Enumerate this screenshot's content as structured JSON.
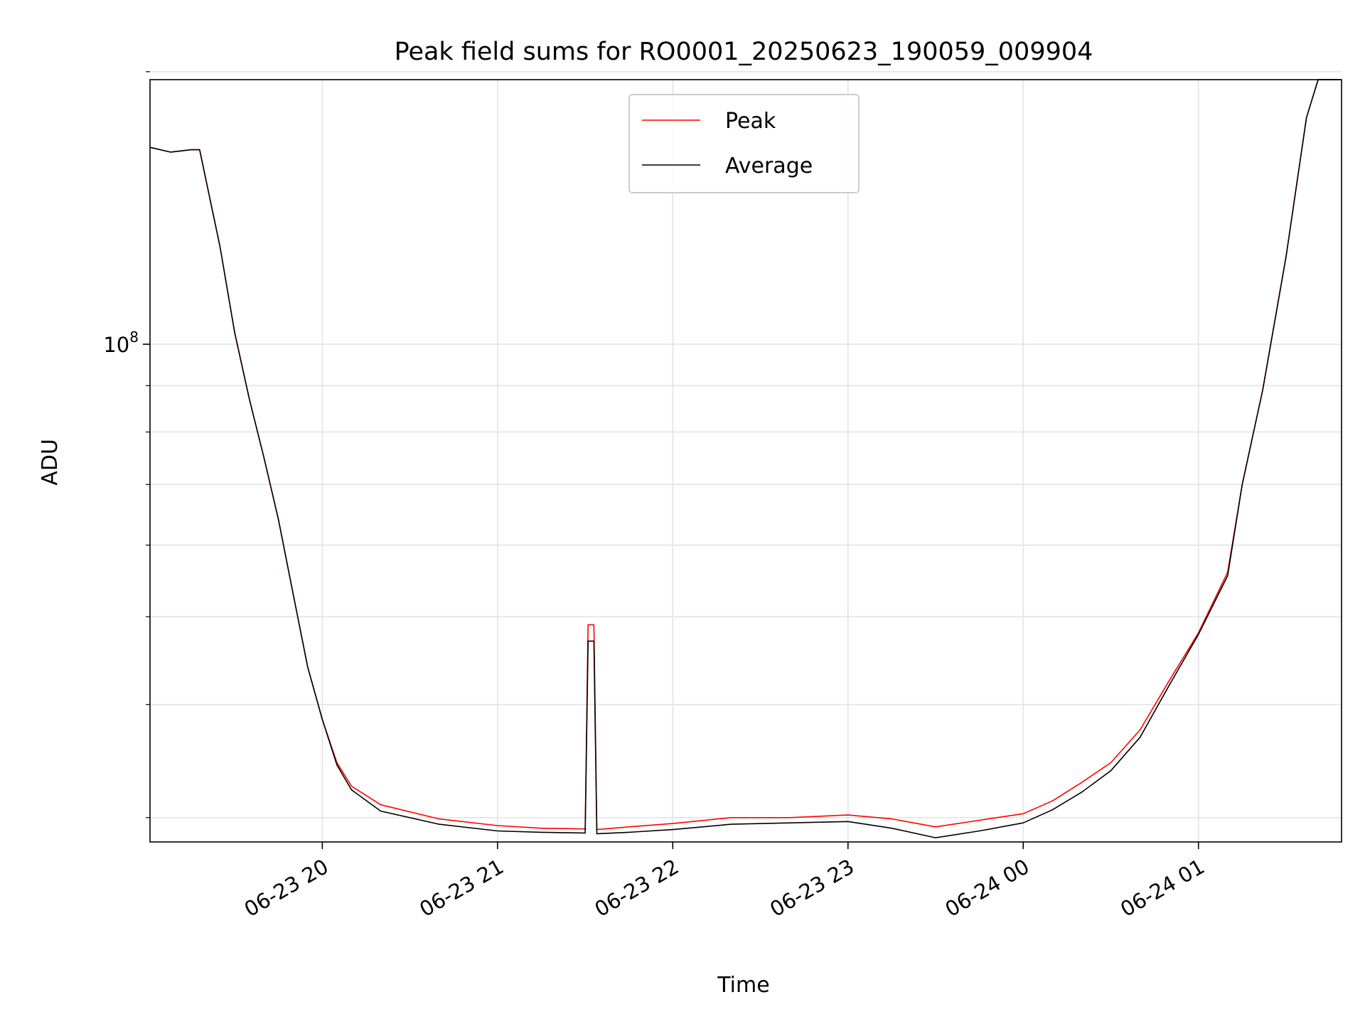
{
  "chart_data": {
    "type": "line",
    "title": "Peak field sums for RO0001_20250623_190059_009904",
    "xlabel": "Time",
    "ylabel": "ADU",
    "y_scale": "log",
    "grid": true,
    "legend_position": "top-center",
    "xlim": [
      "2025-06-23 19:01",
      "2025-06-24 01:49"
    ],
    "ylim": [
      28200000,
      196000000
    ],
    "x_ticks": [
      {
        "value": "2025-06-23 20:00",
        "label": "06-23 20"
      },
      {
        "value": "2025-06-23 21:00",
        "label": "06-23 21"
      },
      {
        "value": "2025-06-23 22:00",
        "label": "06-23 22"
      },
      {
        "value": "2025-06-23 23:00",
        "label": "06-23 23"
      },
      {
        "value": "2025-06-24 00:00",
        "label": "06-24 00"
      },
      {
        "value": "2025-06-24 01:00",
        "label": "06-24 01"
      }
    ],
    "y_major_ticks": [
      {
        "value": 100000000,
        "base": "10",
        "exponent": "8"
      }
    ],
    "y_minor_ticks": [
      30000000,
      40000000,
      50000000,
      60000000,
      70000000,
      80000000,
      90000000,
      200000000
    ],
    "series": [
      {
        "name": "Peak",
        "color": "#ff0000",
        "points": [
          [
            "2025-06-23 19:01",
            165000000
          ],
          [
            "2025-06-23 19:08",
            163000000
          ],
          [
            "2025-06-23 19:15",
            164000000
          ],
          [
            "2025-06-23 19:18",
            164000000
          ],
          [
            "2025-06-23 19:25",
            128000000
          ],
          [
            "2025-06-23 19:30",
            103000000
          ],
          [
            "2025-06-23 19:35",
            87000000
          ],
          [
            "2025-06-23 19:40",
            75000000
          ],
          [
            "2025-06-23 19:45",
            64000000
          ],
          [
            "2025-06-23 19:50",
            53000000
          ],
          [
            "2025-06-23 19:55",
            44000000
          ],
          [
            "2025-06-23 20:00",
            38500000
          ],
          [
            "2025-06-23 20:05",
            34500000
          ],
          [
            "2025-06-23 20:10",
            32500000
          ],
          [
            "2025-06-23 20:20",
            31000000
          ],
          [
            "2025-06-23 20:40",
            29900000
          ],
          [
            "2025-06-23 21:00",
            29400000
          ],
          [
            "2025-06-23 21:15",
            29200000
          ],
          [
            "2025-06-23 21:30",
            29150000
          ],
          [
            "2025-06-23 21:31",
            49000000
          ],
          [
            "2025-06-23 21:33",
            49000000
          ],
          [
            "2025-06-23 21:34",
            29100000
          ],
          [
            "2025-06-23 21:45",
            29300000
          ],
          [
            "2025-06-23 22:00",
            29550000
          ],
          [
            "2025-06-23 22:20",
            30000000
          ],
          [
            "2025-06-23 22:40",
            30000000
          ],
          [
            "2025-06-23 23:00",
            30200000
          ],
          [
            "2025-06-23 23:15",
            29900000
          ],
          [
            "2025-06-23 23:30",
            29300000
          ],
          [
            "2025-06-23 23:45",
            29800000
          ],
          [
            "2025-06-24 00:00",
            30300000
          ],
          [
            "2025-06-24 00:10",
            31300000
          ],
          [
            "2025-06-24 00:20",
            32800000
          ],
          [
            "2025-06-24 00:30",
            34500000
          ],
          [
            "2025-06-24 00:40",
            37500000
          ],
          [
            "2025-06-24 00:50",
            42500000
          ],
          [
            "2025-06-24 01:00",
            48000000
          ],
          [
            "2025-06-24 01:10",
            56000000
          ],
          [
            "2025-06-24 01:15",
            70000000
          ],
          [
            "2025-06-24 01:22",
            89000000
          ],
          [
            "2025-06-24 01:30",
            125000000
          ],
          [
            "2025-06-24 01:37",
            178000000
          ],
          [
            "2025-06-24 01:41",
            196000000
          ],
          [
            "2025-06-24 01:49",
            196000000
          ]
        ]
      },
      {
        "name": "Average",
        "color": "#000000",
        "points": [
          [
            "2025-06-23 19:01",
            165000000
          ],
          [
            "2025-06-23 19:08",
            163000000
          ],
          [
            "2025-06-23 19:15",
            164000000
          ],
          [
            "2025-06-23 19:18",
            164000000
          ],
          [
            "2025-06-23 19:25",
            128000000
          ],
          [
            "2025-06-23 19:30",
            103000000
          ],
          [
            "2025-06-23 19:35",
            87000000
          ],
          [
            "2025-06-23 19:40",
            75000000
          ],
          [
            "2025-06-23 19:45",
            64000000
          ],
          [
            "2025-06-23 19:50",
            53000000
          ],
          [
            "2025-06-23 19:55",
            44000000
          ],
          [
            "2025-06-23 20:00",
            38500000
          ],
          [
            "2025-06-23 20:05",
            34300000
          ],
          [
            "2025-06-23 20:10",
            32200000
          ],
          [
            "2025-06-23 20:20",
            30500000
          ],
          [
            "2025-06-23 20:40",
            29500000
          ],
          [
            "2025-06-23 21:00",
            29000000
          ],
          [
            "2025-06-23 21:15",
            28900000
          ],
          [
            "2025-06-23 21:30",
            28850000
          ],
          [
            "2025-06-23 21:31",
            47000000
          ],
          [
            "2025-06-23 21:33",
            47000000
          ],
          [
            "2025-06-23 21:34",
            28800000
          ],
          [
            "2025-06-23 21:45",
            28900000
          ],
          [
            "2025-06-23 22:00",
            29100000
          ],
          [
            "2025-06-23 22:20",
            29500000
          ],
          [
            "2025-06-23 22:40",
            29600000
          ],
          [
            "2025-06-23 23:00",
            29700000
          ],
          [
            "2025-06-23 23:15",
            29200000
          ],
          [
            "2025-06-23 23:30",
            28500000
          ],
          [
            "2025-06-23 23:45",
            29000000
          ],
          [
            "2025-06-24 00:00",
            29600000
          ],
          [
            "2025-06-24 00:10",
            30600000
          ],
          [
            "2025-06-24 00:20",
            32000000
          ],
          [
            "2025-06-24 00:30",
            33800000
          ],
          [
            "2025-06-24 00:40",
            36800000
          ],
          [
            "2025-06-24 00:50",
            42000000
          ],
          [
            "2025-06-24 01:00",
            47800000
          ],
          [
            "2025-06-24 01:10",
            55500000
          ],
          [
            "2025-06-24 01:15",
            70000000
          ],
          [
            "2025-06-24 01:22",
            89000000
          ],
          [
            "2025-06-24 01:30",
            125000000
          ],
          [
            "2025-06-24 01:37",
            178000000
          ],
          [
            "2025-06-24 01:41",
            196000000
          ],
          [
            "2025-06-24 01:49",
            196000000
          ]
        ]
      }
    ]
  }
}
